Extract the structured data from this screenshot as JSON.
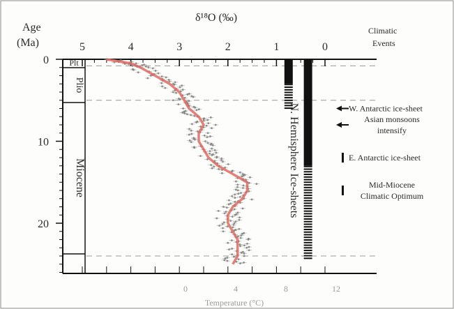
{
  "chart_data": {
    "type": "line",
    "title": "",
    "top_axis": {
      "label": "δ¹⁸O (‰)",
      "ticks": [
        "5",
        "4",
        "3",
        "2",
        "1",
        "0"
      ],
      "range": [
        5,
        0
      ]
    },
    "bottom_axis": {
      "label": "Temperature (°C)",
      "ticks": [
        "0",
        "4",
        "8",
        "12"
      ],
      "range": [
        0,
        12
      ]
    },
    "y_axis": {
      "label_line1": "Age",
      "label_line2": "(Ma)",
      "ticks": [
        "0",
        "10",
        "20"
      ],
      "range": [
        0,
        26
      ],
      "reversed": true
    },
    "epochs": [
      {
        "label": "Plt",
        "age_start": 0,
        "age_end": 1.0
      },
      {
        "label": "Plio",
        "age_start": 1.0,
        "age_end": 5.3
      },
      {
        "label": "Miocene",
        "age_start": 5.3,
        "age_end": 23.8
      }
    ],
    "series": [
      {
        "values": [
          {
            "age": 0.0,
            "d18o": 4.5
          },
          {
            "age": 0.5,
            "d18o": 4.0
          },
          {
            "age": 1.0,
            "d18o": 3.8
          },
          {
            "age": 2.0,
            "d18o": 3.5
          },
          {
            "age": 3.0,
            "d18o": 3.2
          },
          {
            "age": 4.0,
            "d18o": 3.0
          },
          {
            "age": 5.0,
            "d18o": 2.9
          },
          {
            "age": 6.0,
            "d18o": 2.8
          },
          {
            "age": 7.0,
            "d18o": 2.6
          },
          {
            "age": 8.0,
            "d18o": 2.5
          },
          {
            "age": 9.0,
            "d18o": 2.6
          },
          {
            "age": 10.0,
            "d18o": 2.6
          },
          {
            "age": 11.0,
            "d18o": 2.5
          },
          {
            "age": 12.0,
            "d18o": 2.4
          },
          {
            "age": 13.0,
            "d18o": 2.2
          },
          {
            "age": 14.0,
            "d18o": 1.9
          },
          {
            "age": 15.0,
            "d18o": 1.6
          },
          {
            "age": 16.0,
            "d18o": 1.6
          },
          {
            "age": 17.0,
            "d18o": 1.7
          },
          {
            "age": 18.0,
            "d18o": 1.9
          },
          {
            "age": 19.0,
            "d18o": 2.0
          },
          {
            "age": 20.0,
            "d18o": 2.0
          },
          {
            "age": 21.0,
            "d18o": 1.9
          },
          {
            "age": 22.0,
            "d18o": 1.8
          },
          {
            "age": 23.0,
            "d18o": 1.8
          },
          {
            "age": 24.0,
            "d18o": 1.8
          },
          {
            "age": 25.0,
            "d18o": 1.9
          }
        ]
      }
    ],
    "ice_sheet_bars": [
      {
        "label": "N. Hemisphere Ice-sheets",
        "d18o_position": 0.75,
        "solid_from": 0,
        "solid_to": 3,
        "dashed_from": 3,
        "dashed_to": 6
      },
      {
        "d18o_position": 0.35,
        "solid_from": 0,
        "solid_to": 13,
        "dashed_from": 13,
        "dashed_to": 24.5
      }
    ],
    "dashed_horizontal_lines_age": [
      0.8,
      5.0,
      24.0
    ],
    "climatic_events_header_line1": "Climatic",
    "climatic_events_header_line2": "Events",
    "climatic_events": [
      {
        "label": "W. Antarctic ice-sheet",
        "age": 6.0,
        "marker": "arrow"
      },
      {
        "label_line1": "Asian monsoons",
        "label_line2": "intensify",
        "age": 8.0,
        "marker": "arrow"
      },
      {
        "label": "E. Antarctic ice-sheet",
        "age": 12.0,
        "marker": "bar"
      },
      {
        "label_line1": "Mid-Miocene",
        "label_line2": "Climatic Optimum",
        "age": 16.0,
        "marker": "bar"
      }
    ],
    "grid": false,
    "legend": "none"
  }
}
